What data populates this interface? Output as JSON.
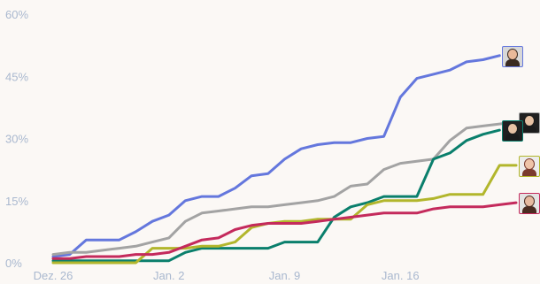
{
  "chart_data": {
    "type": "line",
    "title": "",
    "xlabel": "",
    "ylabel": "",
    "ylim": [
      0,
      60
    ],
    "y_ticks": [
      0,
      15,
      30,
      45,
      60
    ],
    "y_tick_labels": [
      "0%",
      "15%",
      "30%",
      "45%",
      "60%"
    ],
    "x_ticks": [
      {
        "index": 0,
        "label": "Dez. 26"
      },
      {
        "index": 7,
        "label": "Jan. 2"
      },
      {
        "index": 14,
        "label": "Jan. 9"
      },
      {
        "index": 21,
        "label": "Jan. 16"
      }
    ],
    "grid": false,
    "legend": "avatars-at-line-ends",
    "series": [
      {
        "color": "#6477dd",
        "avatar": "person-avatar-1",
        "values": [
          1.5,
          2,
          5.5,
          5.5,
          5.5,
          7.5,
          10,
          11.5,
          15,
          16,
          16,
          18,
          21,
          21.5,
          25,
          27.5,
          28.5,
          29,
          29,
          30,
          30.5,
          40,
          44.5,
          45.5,
          46.5,
          48.5,
          49,
          50
        ]
      },
      {
        "color": "#a3a3a3",
        "avatar": "person-avatar-2",
        "values": [
          2,
          2.5,
          2.5,
          3,
          3.5,
          4,
          5,
          6,
          10,
          12,
          12.5,
          13,
          13.5,
          13.5,
          14,
          14.5,
          15,
          16,
          18.5,
          19,
          22.5,
          24,
          24.5,
          25,
          29.5,
          32.5,
          33,
          33.5,
          34
        ]
      },
      {
        "color": "#0a7f6c",
        "avatar": "person-avatar-2",
        "values": [
          0.5,
          0.5,
          0.5,
          0.5,
          0.5,
          0.5,
          0.5,
          0.5,
          2.5,
          3.5,
          3.5,
          3.5,
          3.5,
          3.5,
          5,
          5,
          5,
          11,
          13.5,
          14.5,
          16,
          16,
          16,
          25,
          26.5,
          29.5,
          31,
          32
        ]
      },
      {
        "color": "#b2b62c",
        "avatar": "person-avatar-3",
        "values": [
          0,
          0,
          0,
          0,
          0,
          0,
          3.5,
          3.5,
          3.5,
          4,
          4,
          5,
          8.5,
          9.5,
          10,
          10,
          10.5,
          10.5,
          10.5,
          14,
          15,
          15,
          15,
          15.5,
          16.5,
          16.5,
          16.5,
          23.5,
          23.5
        ]
      },
      {
        "color": "#c42a5c",
        "avatar": "person-avatar-4",
        "values": [
          1,
          1,
          1.5,
          1.5,
          1.5,
          2,
          2,
          2.5,
          4,
          5.5,
          6,
          8,
          9,
          9.5,
          9.5,
          9.5,
          10,
          10.5,
          11,
          11.5,
          12,
          12,
          12,
          13,
          13.5,
          13.5,
          13.5,
          14,
          14.5
        ]
      }
    ]
  },
  "avatars": {
    "person-avatar-1": {
      "skin": "#e9b99a",
      "hair": "#3a2a20",
      "bg": "#d8d8d8"
    },
    "person-avatar-2": {
      "skin": "#e7c2a4",
      "hair": "#1b1b1b",
      "bg": "#202020"
    },
    "person-avatar-3": {
      "skin": "#eec3a8",
      "hair": "#7a3a2e",
      "bg": "#ececec"
    },
    "person-avatar-4": {
      "skin": "#e6b9a0",
      "hair": "#4b2c22",
      "bg": "#e4e4e4"
    }
  }
}
